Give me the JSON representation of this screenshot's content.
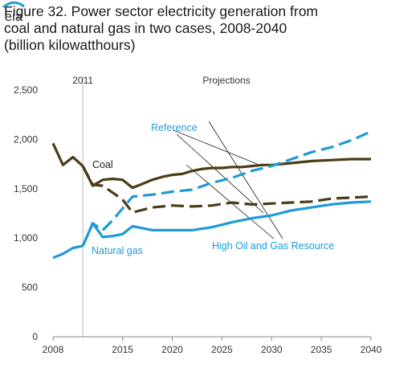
{
  "title": {
    "line1": "Figure 32. Power sector electricity generation from",
    "line2": "coal and natural gas in two cases, 2008-2040",
    "line3": "(billion kilowatthours)"
  },
  "colors": {
    "coal": "#4a3c16",
    "gas": "#1f9ad6",
    "gas_text": "#1f9ad6",
    "axis": "#888888",
    "divider": "#bbbbbb"
  },
  "logo_text": "eia",
  "chart_data": {
    "type": "line",
    "title": "Figure 32. Power sector electricity generation from coal and natural gas in two cases, 2008-2040",
    "xlabel": "",
    "ylabel": "",
    "xlim": [
      2008,
      2040
    ],
    "ylim": [
      0,
      2500
    ],
    "xticks": [
      2008,
      2015,
      2020,
      2025,
      2030,
      2035,
      2040
    ],
    "yticks": [
      0,
      500,
      1000,
      1500,
      2000,
      2500
    ],
    "ytick_labels": [
      "0",
      "500",
      "1,000",
      "1,500",
      "2,000",
      "2,500"
    ],
    "history_end": 2011,
    "annotations": {
      "history_marker": "2011",
      "projections": "Projections",
      "coal": "Coal",
      "natural_gas": "Natural gas",
      "reference": "Reference",
      "high_resource": "High Oil and Gas Resource"
    },
    "series": [
      {
        "name": "Coal",
        "case": "history",
        "x": [
          2008,
          2009,
          2010,
          2011
        ],
        "y": [
          1960,
          1740,
          1820,
          1730
        ]
      },
      {
        "name": "Coal",
        "case": "Reference",
        "x": [
          2011,
          2012,
          2013,
          2014,
          2015,
          2016,
          2017,
          2018,
          2019,
          2020,
          2021,
          2022,
          2023,
          2024,
          2025,
          2026,
          2027,
          2028,
          2029,
          2030,
          2032,
          2034,
          2036,
          2038,
          2040
        ],
        "y": [
          1730,
          1530,
          1590,
          1600,
          1590,
          1510,
          1550,
          1590,
          1620,
          1640,
          1650,
          1680,
          1700,
          1710,
          1710,
          1720,
          1720,
          1730,
          1740,
          1740,
          1760,
          1780,
          1790,
          1800,
          1800
        ]
      },
      {
        "name": "Coal",
        "case": "High Oil and Gas Resource",
        "x": [
          2011,
          2012,
          2013,
          2014,
          2015,
          2016,
          2018,
          2020,
          2022,
          2024,
          2026,
          2028,
          2030,
          2032,
          2034,
          2036,
          2038,
          2040
        ],
        "y": [
          1730,
          1540,
          1530,
          1460,
          1390,
          1260,
          1310,
          1330,
          1320,
          1330,
          1360,
          1340,
          1350,
          1360,
          1370,
          1400,
          1410,
          1420
        ]
      },
      {
        "name": "Natural gas",
        "case": "history",
        "x": [
          2008,
          2009,
          2010,
          2011
        ],
        "y": [
          800,
          840,
          900,
          920
        ]
      },
      {
        "name": "Natural gas",
        "case": "Reference",
        "x": [
          2011,
          2012,
          2013,
          2014,
          2015,
          2016,
          2017,
          2018,
          2019,
          2020,
          2022,
          2024,
          2026,
          2028,
          2030,
          2032,
          2034,
          2036,
          2038,
          2040
        ],
        "y": [
          920,
          1150,
          1010,
          1020,
          1040,
          1120,
          1100,
          1080,
          1080,
          1080,
          1080,
          1110,
          1160,
          1200,
          1230,
          1280,
          1310,
          1340,
          1360,
          1370
        ]
      },
      {
        "name": "Natural gas",
        "case": "High Oil and Gas Resource",
        "x": [
          2011,
          2012,
          2013,
          2014,
          2015,
          2016,
          2018,
          2020,
          2022,
          2024,
          2026,
          2028,
          2030,
          2032,
          2034,
          2036,
          2038,
          2040
        ],
        "y": [
          920,
          1150,
          1080,
          1180,
          1300,
          1420,
          1440,
          1470,
          1490,
          1560,
          1610,
          1680,
          1730,
          1800,
          1870,
          1920,
          1990,
          2080
        ]
      }
    ]
  }
}
